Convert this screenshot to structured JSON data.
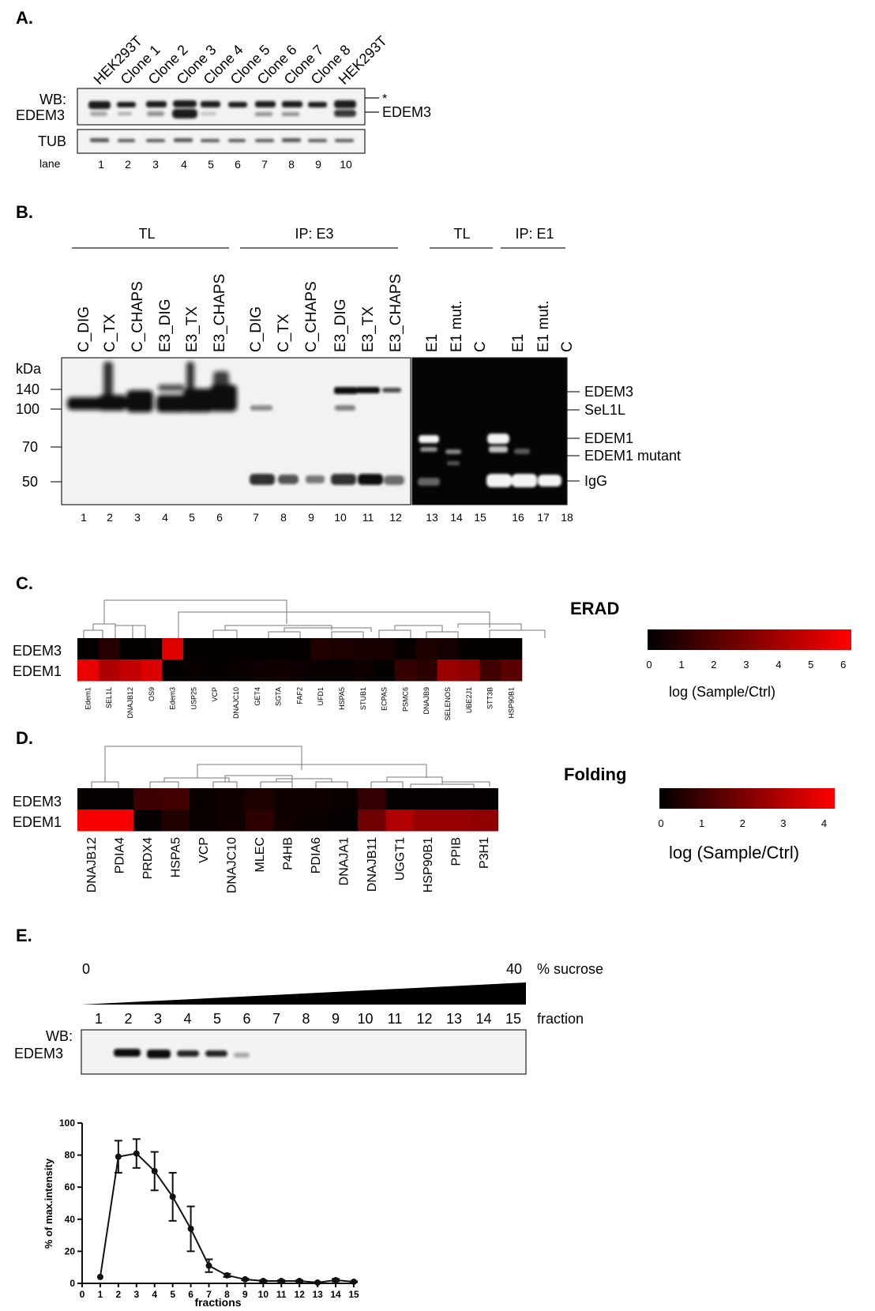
{
  "panel_a": {
    "label": "A.",
    "lane_titles": [
      "HEK293T",
      "Clone 1",
      "Clone 2",
      "Clone 3",
      "Clone 4",
      "Clone 5",
      "Clone 6",
      "Clone 7",
      "Clone 8",
      "HEK293T"
    ],
    "row_labels": [
      "WB:",
      "EDEM3",
      "TUB"
    ],
    "lane_word": "lane",
    "lane_numbers": [
      "1",
      "2",
      "3",
      "4",
      "5",
      "6",
      "7",
      "8",
      "9",
      "10"
    ],
    "right_labels": [
      "*",
      "EDEM3"
    ]
  },
  "panel_b": {
    "label": "B.",
    "group_labels": [
      "TL",
      "IP: E3",
      "TL",
      "IP: E1"
    ],
    "lane_titles": [
      "C_DIG",
      "C_TX",
      "C_CHAPS",
      "E3_DIG",
      "E3_TX",
      "E3_CHAPS",
      "C_DIG",
      "C_TX",
      "C_CHAPS",
      "E3_DIG",
      "E3_TX",
      "E3_CHAPS",
      "E1",
      "E1 mut.",
      "C",
      "E1",
      "E1 mut.",
      "C"
    ],
    "kda_label": "kDa",
    "mw_markers": [
      "140",
      "100",
      "70",
      "50"
    ],
    "right_labels": [
      "EDEM3",
      "SeL1L",
      "EDEM1",
      "EDEM1 mutant",
      "IgG"
    ],
    "lane_numbers": [
      "1",
      "2",
      "3",
      "4",
      "5",
      "6",
      "7",
      "8",
      "9",
      "10",
      "11",
      "12",
      "13",
      "14",
      "15",
      "16",
      "17",
      "18"
    ]
  },
  "panel_c": {
    "label": "C.",
    "title": "ERAD",
    "rows": [
      "EDEM3",
      "EDEM1"
    ],
    "columns": [
      "Edem1",
      "SEL1L",
      "DNAJB12",
      "OS9",
      "Edem3",
      "USP25",
      "VCP",
      "DNAJC10",
      "GET4",
      "SGTA",
      "FAF2",
      "UFD1",
      "HSPA5",
      "STUB1",
      "ECPAS",
      "PSMC6",
      "DNAJB9",
      "SELENOS",
      "UBE2J1",
      "STT3B",
      "HSP90B1"
    ],
    "values": [
      [
        0.1,
        0.9,
        0.1,
        0.1,
        5.5,
        0.1,
        0.1,
        0.1,
        0.1,
        0.1,
        0.1,
        0.8,
        0.7,
        0.6,
        0.6,
        0.2,
        0.7,
        0.5,
        0.1,
        0.1,
        0.1
      ],
      [
        5.8,
        4.3,
        4.8,
        5.4,
        0.1,
        0.2,
        0.1,
        0.2,
        0.3,
        0.4,
        0.3,
        0.2,
        0.2,
        0.3,
        0.1,
        1.3,
        1.1,
        3.8,
        3.5,
        1.6,
        2.2
      ]
    ],
    "colorbar_ticks": [
      "0",
      "1",
      "2",
      "3",
      "4",
      "5",
      "6"
    ],
    "colorbar_label": "log (Sample/Ctrl)"
  },
  "panel_d": {
    "label": "D.",
    "title": "Folding",
    "rows": [
      "EDEM3",
      "EDEM1"
    ],
    "columns": [
      "DNAJB12",
      "PDIA4",
      "PRDX4",
      "HSPA5",
      "VCP",
      "DNAJC10",
      "MLEC",
      "P4HB",
      "PDIA6",
      "DNAJA1",
      "DNAJB11",
      "UGGT1",
      "HSP90B1",
      "PPIB",
      "P3H1"
    ],
    "values": [
      [
        0.1,
        0.1,
        1.1,
        1.2,
        0.2,
        0.3,
        0.5,
        0.3,
        0.3,
        0.2,
        0.9,
        0.1,
        0.1,
        0.1,
        0.1
      ],
      [
        4.5,
        4.5,
        0.1,
        0.6,
        0.2,
        0.3,
        0.8,
        0.3,
        0.2,
        0.1,
        2.0,
        3.2,
        2.7,
        2.7,
        2.6
      ]
    ],
    "colorbar_ticks": [
      "0",
      "1",
      "2",
      "3",
      "4"
    ],
    "colorbar_label": "log (Sample/Ctrl)"
  },
  "panel_e": {
    "label": "E.",
    "sucrose_start": "0",
    "sucrose_end": "40",
    "sucrose_label": "% sucrose",
    "fraction_label": "fraction",
    "fraction_numbers": [
      "1",
      "2",
      "3",
      "4",
      "5",
      "6",
      "7",
      "8",
      "9",
      "10",
      "11",
      "12",
      "13",
      "14",
      "15"
    ],
    "row_labels": [
      "WB:",
      "EDEM3"
    ]
  },
  "chart_data": {
    "type": "line",
    "x": [
      1,
      2,
      3,
      4,
      5,
      6,
      7,
      8,
      9,
      10,
      11,
      12,
      13,
      14,
      15
    ],
    "values": [
      4,
      79,
      81,
      70,
      54,
      34,
      11,
      5,
      2.5,
      1.5,
      1.5,
      1.5,
      0.5,
      2,
      1
    ],
    "errors": [
      0,
      10,
      9,
      12,
      15,
      14,
      4,
      1,
      0.5,
      0.5,
      0.5,
      0.5,
      0.3,
      0.8,
      0.3
    ],
    "xlabel": "fractions",
    "ylabel": "% of max.intensity",
    "xlim": [
      0,
      15
    ],
    "ylim": [
      0,
      100
    ],
    "xticks": [
      0,
      1,
      2,
      3,
      4,
      5,
      6,
      7,
      8,
      9,
      10,
      11,
      12,
      13,
      14,
      15
    ],
    "yticks": [
      0,
      20,
      40,
      60,
      80,
      100
    ],
    "grid": false
  },
  "colors": {
    "heat_low": "#000000",
    "heat_high": "#ff0000",
    "text": "#111111",
    "blot_bg": "#f2f2f2"
  }
}
